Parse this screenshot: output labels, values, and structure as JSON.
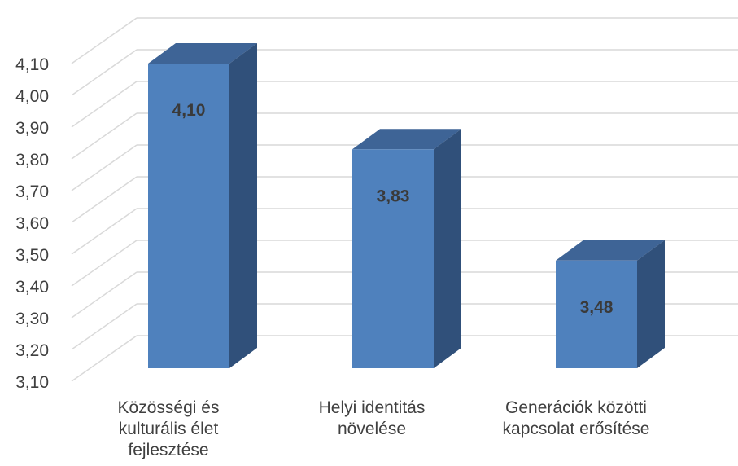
{
  "chart_data": {
    "type": "bar",
    "categories": [
      "Közösségi és\nkulturális élet\nfejlesztése",
      "Helyi identitás\nnövelése",
      "Generációk közötti\nkapcsolat erősítése"
    ],
    "values": [
      4.1,
      3.83,
      3.48
    ],
    "value_labels": [
      "4,10",
      "3,83",
      "3,48"
    ],
    "y_ticks": [
      "3,10",
      "3,20",
      "3,30",
      "3,40",
      "3,50",
      "3,60",
      "3,70",
      "3,80",
      "3,90",
      "4,00",
      "4,10"
    ],
    "ylim": [
      3.1,
      4.2
    ],
    "grid": true,
    "three_d": true,
    "colors": {
      "bar_front": "#4f81bd",
      "bar_top": "#3e6496",
      "bar_side": "#30507a",
      "grid": "#d9d9d9",
      "text": "#404040",
      "value_text": "#3a3a3a"
    }
  }
}
